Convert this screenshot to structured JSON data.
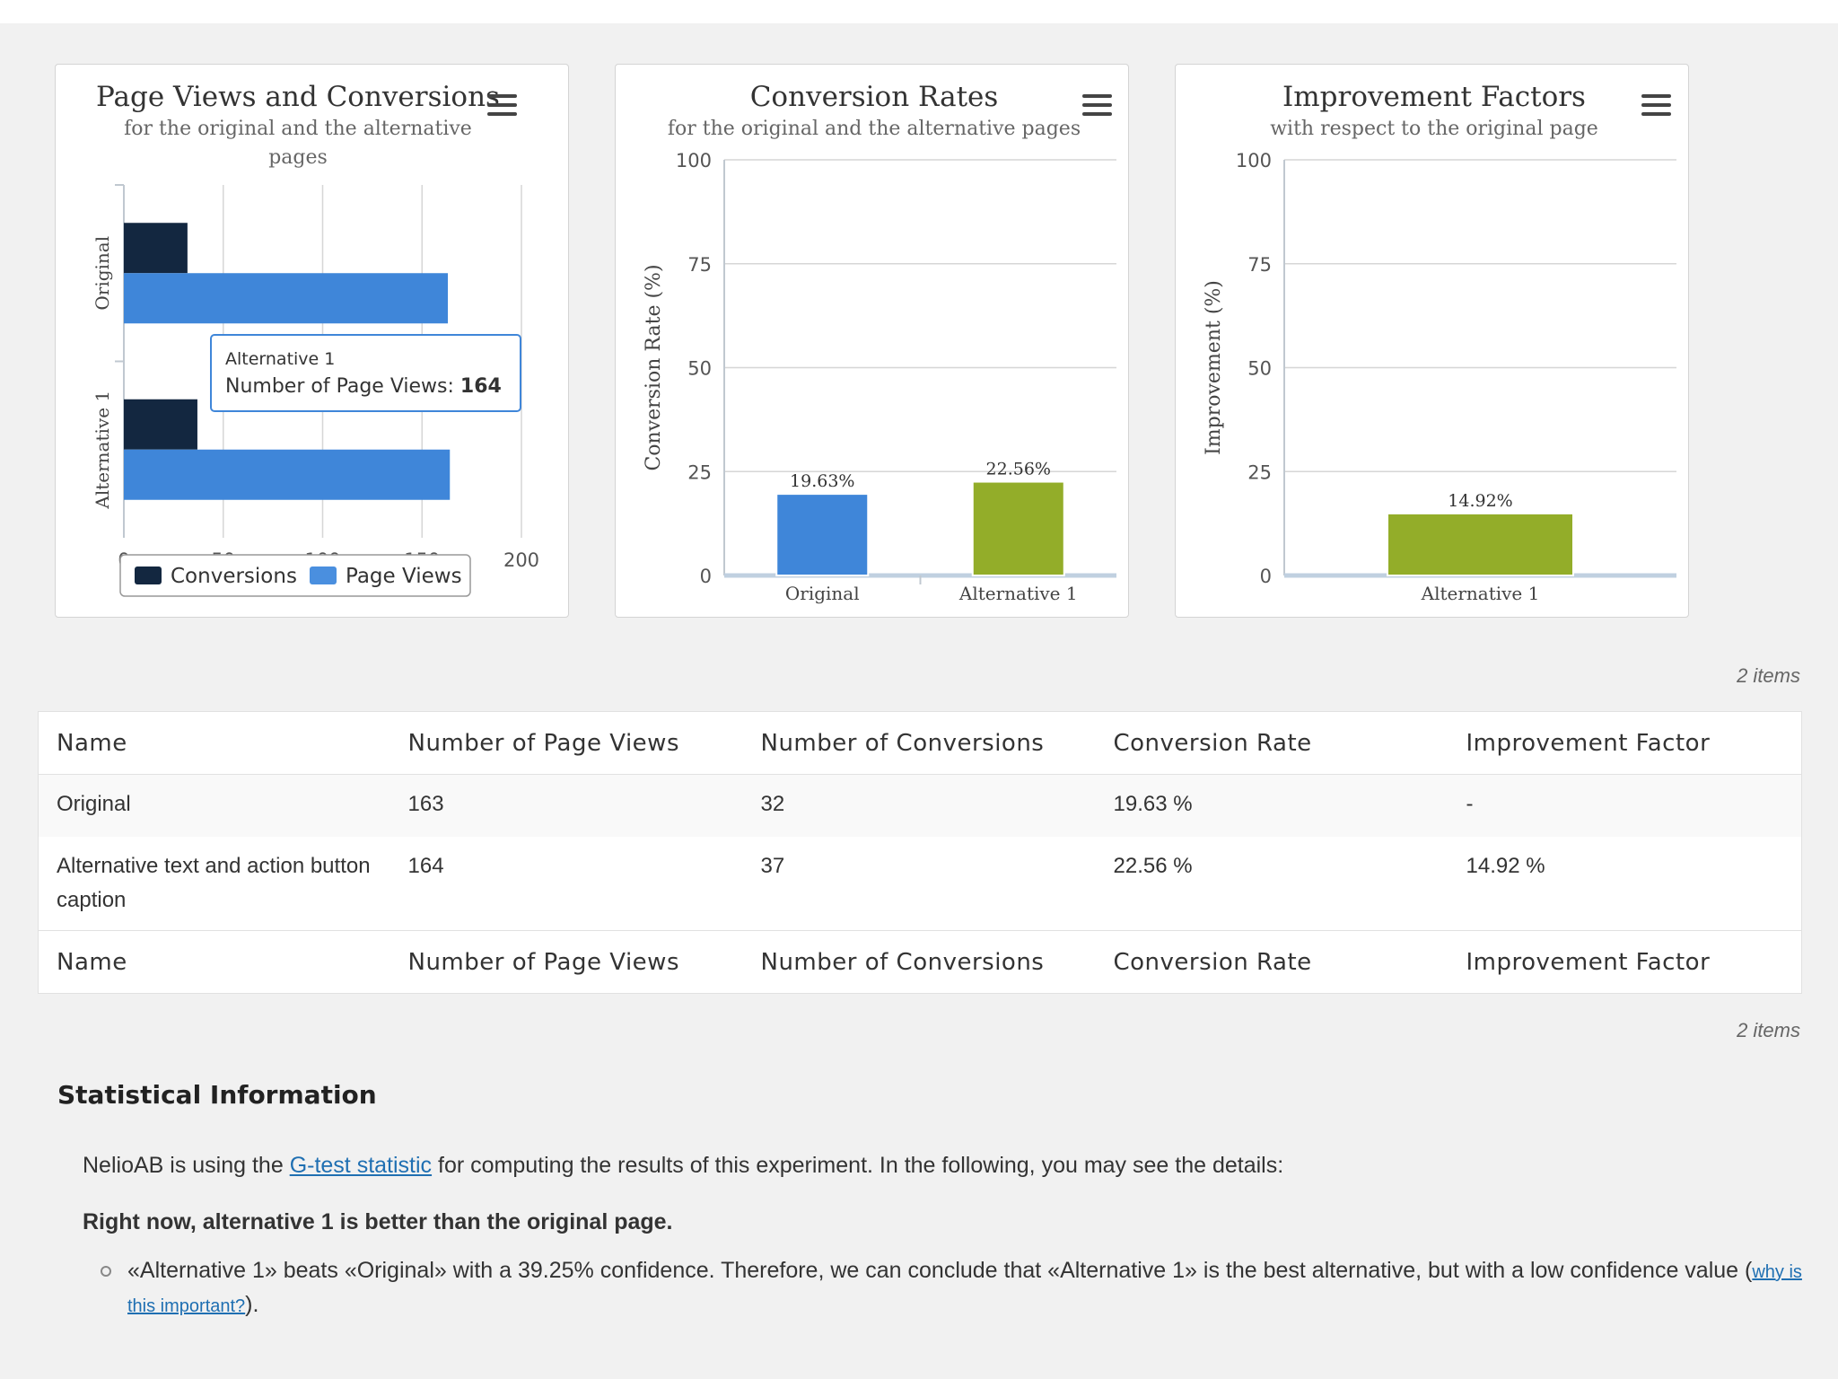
{
  "charts": {
    "page_views": {
      "title": "Page Views and Conversions",
      "subtitle_line1": "for the original and the alternative",
      "subtitle_line2": "pages",
      "menu_icon": "hamburger-menu-icon",
      "legend": {
        "conversions": "Conversions",
        "page_views": "Page Views"
      },
      "tooltip": {
        "series": "Alternative 1",
        "label": "Number of Page Views: ",
        "value": "164"
      }
    },
    "conversion_rates": {
      "title": "Conversion Rates",
      "subtitle": "for the original and the alternative pages",
      "menu_icon": "hamburger-menu-icon"
    },
    "improvement": {
      "title": "Improvement Factors",
      "subtitle": "with respect to the original page",
      "menu_icon": "hamburger-menu-icon"
    }
  },
  "chart_data": [
    {
      "type": "bar",
      "orientation": "horizontal",
      "categories": [
        "Original",
        "Alternative 1"
      ],
      "series": [
        {
          "name": "Conversions",
          "values": [
            32,
            37
          ],
          "color": "#132740"
        },
        {
          "name": "Page Views",
          "values": [
            163,
            164
          ],
          "color": "#3f86d9"
        }
      ],
      "xlim": [
        0,
        200
      ],
      "xticks": [
        "0",
        "50",
        "100",
        "150",
        "200"
      ],
      "grid": true,
      "legend": "bottom"
    },
    {
      "type": "bar",
      "categories": [
        "Original",
        "Alternative 1"
      ],
      "values": [
        19.63,
        22.56
      ],
      "data_labels": [
        "19.63%",
        "22.56%"
      ],
      "colors": [
        "#3f86d9",
        "#93ad29"
      ],
      "ylabel": "Conversion Rate (%)",
      "ylim": [
        0,
        100
      ],
      "yticks": [
        "0",
        "25",
        "50",
        "75",
        "100"
      ],
      "grid": true
    },
    {
      "type": "bar",
      "categories": [
        "Alternative 1"
      ],
      "values": [
        14.92
      ],
      "data_labels": [
        "14.92%"
      ],
      "colors": [
        "#93ad29"
      ],
      "ylabel": "Improvement (%)",
      "ylim": [
        0,
        100
      ],
      "yticks": [
        "0",
        "25",
        "50",
        "75",
        "100"
      ],
      "grid": true
    }
  ],
  "table": {
    "items_count": "2 items",
    "headers": [
      "Name",
      "Number of Page Views",
      "Number of Conversions",
      "Conversion Rate",
      "Improvement Factor"
    ],
    "rows": [
      [
        "Original",
        "163",
        "32",
        "19.63 %",
        "-"
      ],
      [
        "Alternative text and action button caption",
        "164",
        "37",
        "22.56 %",
        "14.92 %"
      ]
    ]
  },
  "stats": {
    "title": "Statistical Information",
    "intro_before": "NelioAB is using the ",
    "intro_link": "G-test statistic",
    "intro_after": " for computing the results of this experiment. In the following, you may see the details:",
    "verdict": "Right now, alternative 1 is better than the original page.",
    "bullet": "«Alternative 1» beats «Original» with a 39.25% confidence. Therefore, we can conclude that «Alternative 1» is the best alternative, but with a low confidence value ",
    "why_open": "(",
    "why_link": "why is this important?",
    "why_close": ")."
  }
}
